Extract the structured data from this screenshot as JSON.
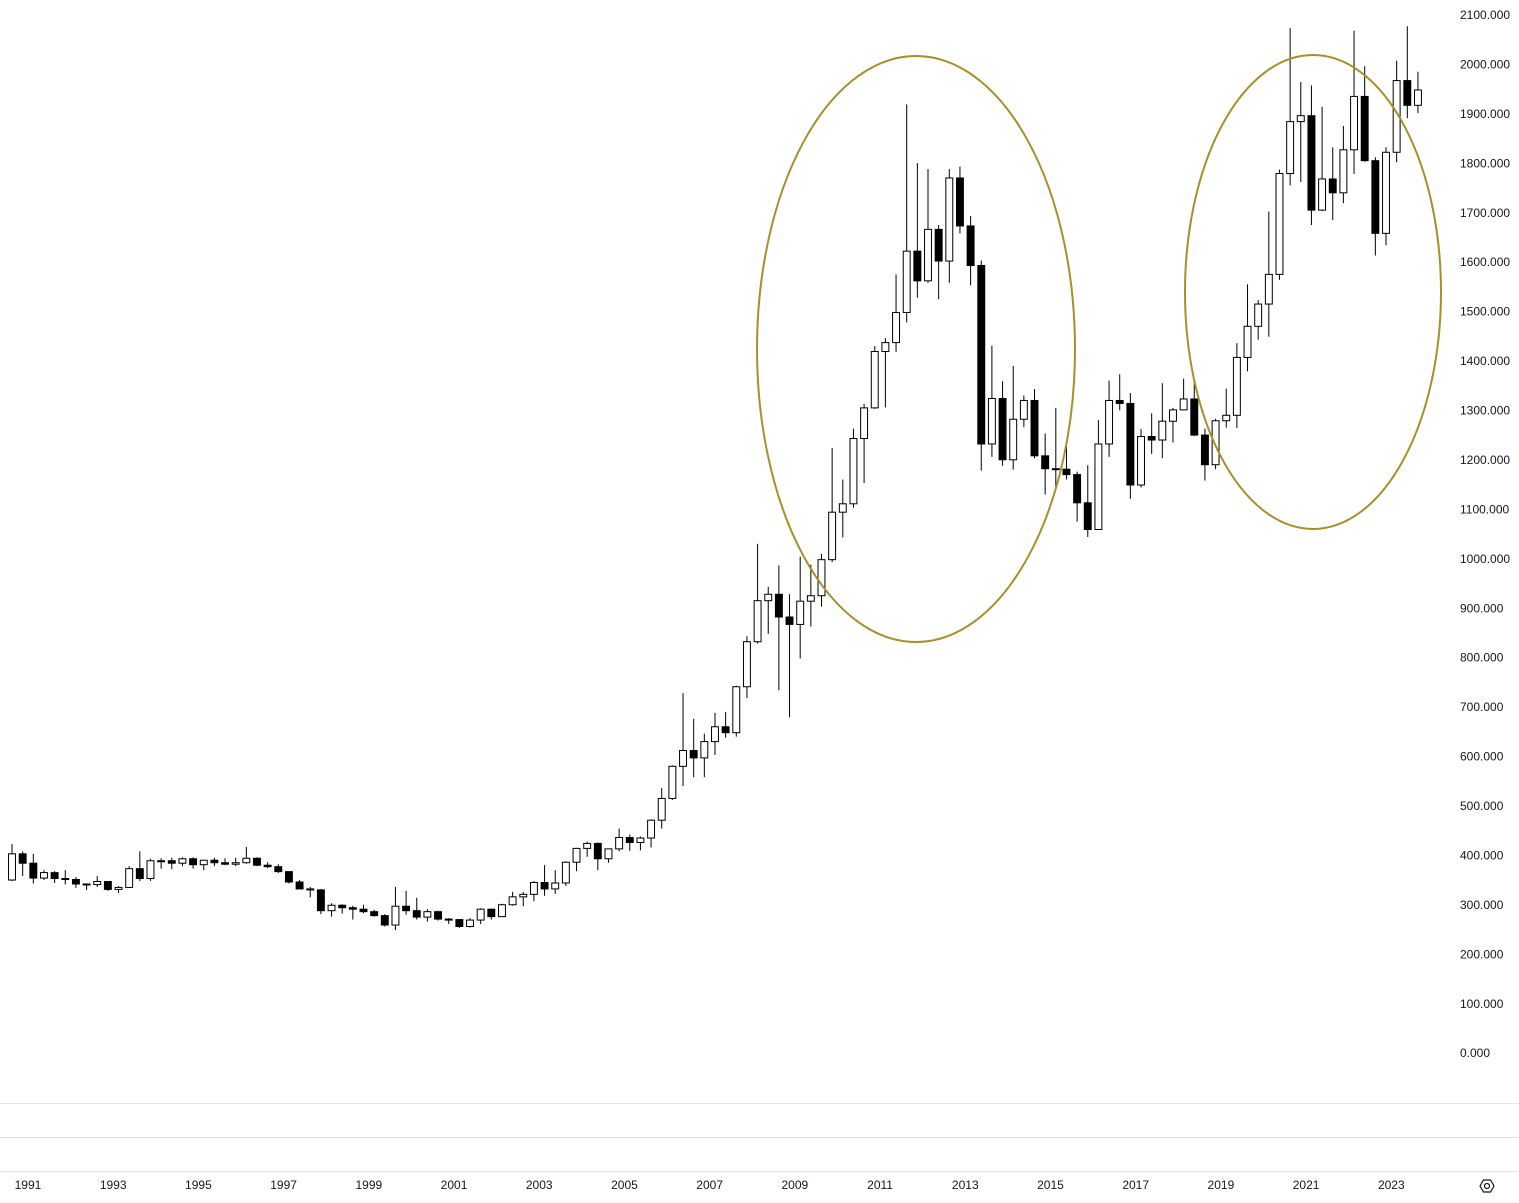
{
  "chart_data": {
    "type": "candlestick",
    "up_color": "#ffffff",
    "down_color": "#000000",
    "wick_color": "#000000",
    "grid": false,
    "xlim": [
      1990.343,
      2024.26
    ],
    "xticks": [
      1991,
      1993,
      1995,
      1997,
      1999,
      2001,
      2003,
      2005,
      2007,
      2009,
      2011,
      2013,
      2015,
      2017,
      2019,
      2021,
      2023
    ],
    "ylim": [
      -99,
      2132
    ],
    "yticks": [
      {
        "value": 0,
        "label": "0.000"
      },
      {
        "value": 100,
        "label": "100.000"
      },
      {
        "value": 200,
        "label": "200.000"
      },
      {
        "value": 300,
        "label": "300.000"
      },
      {
        "value": 400,
        "label": "400.000"
      },
      {
        "value": 500,
        "label": "500.000"
      },
      {
        "value": 600,
        "label": "600.000"
      },
      {
        "value": 700,
        "label": "700.000"
      },
      {
        "value": 800,
        "label": "800.000"
      },
      {
        "value": 900,
        "label": "900.000"
      },
      {
        "value": 1000,
        "label": "1000.000"
      },
      {
        "value": 1100,
        "label": "1100.000"
      },
      {
        "value": 1200,
        "label": "1200.000"
      },
      {
        "value": 1300,
        "label": "1300.000"
      },
      {
        "value": 1400,
        "label": "1400.000"
      },
      {
        "value": 1500,
        "label": "1500.000"
      },
      {
        "value": 1600,
        "label": "1600.000"
      },
      {
        "value": 1700,
        "label": "1700.000"
      },
      {
        "value": 1800,
        "label": "1800.000"
      },
      {
        "value": 1900,
        "label": "1900.000"
      },
      {
        "value": 2000,
        "label": "2000.000"
      },
      {
        "value": 2100,
        "label": "2100.000"
      }
    ],
    "x": [
      1990.625,
      1990.875,
      1991.125,
      1991.375,
      1991.625,
      1991.875,
      1992.125,
      1992.375,
      1992.625,
      1992.875,
      1993.125,
      1993.375,
      1993.625,
      1993.875,
      1994.125,
      1994.375,
      1994.625,
      1994.875,
      1995.125,
      1995.375,
      1995.625,
      1995.875,
      1996.125,
      1996.375,
      1996.625,
      1996.875,
      1997.125,
      1997.375,
      1997.625,
      1997.875,
      1998.125,
      1998.375,
      1998.625,
      1998.875,
      1999.125,
      1999.375,
      1999.625,
      1999.875,
      2000.125,
      2000.375,
      2000.625,
      2000.875,
      2001.125,
      2001.375,
      2001.625,
      2001.875,
      2002.125,
      2002.375,
      2002.625,
      2002.875,
      2003.125,
      2003.375,
      2003.625,
      2003.875,
      2004.125,
      2004.375,
      2004.625,
      2004.875,
      2005.125,
      2005.375,
      2005.625,
      2005.875,
      2006.125,
      2006.375,
      2006.625,
      2006.875,
      2007.125,
      2007.375,
      2007.625,
      2007.875,
      2008.125,
      2008.375,
      2008.625,
      2008.875,
      2009.125,
      2009.375,
      2009.625,
      2009.875,
      2010.125,
      2010.375,
      2010.625,
      2010.875,
      2011.125,
      2011.375,
      2011.625,
      2011.875,
      2012.125,
      2012.375,
      2012.625,
      2012.875,
      2013.125,
      2013.375,
      2013.625,
      2013.875,
      2014.125,
      2014.375,
      2014.625,
      2014.875,
      2015.125,
      2015.375,
      2015.625,
      2015.875,
      2016.125,
      2016.375,
      2016.625,
      2016.875,
      2017.125,
      2017.375,
      2017.625,
      2017.875,
      2018.125,
      2018.375,
      2018.625,
      2018.875,
      2019.125,
      2019.375,
      2019.625,
      2019.875,
      2020.125,
      2020.375,
      2020.625,
      2020.875,
      2021.125,
      2021.375,
      2021.625,
      2021.875,
      2022.125,
      2022.375,
      2022.625,
      2022.875,
      2023.125,
      2023.375,
      2023.625
    ],
    "candles": [
      [
        352,
        425,
        350,
        405
      ],
      [
        405,
        410,
        360,
        386
      ],
      [
        386,
        405,
        345,
        356
      ],
      [
        356,
        372,
        352,
        367
      ],
      [
        367,
        370,
        346,
        355
      ],
      [
        355,
        372,
        343,
        353
      ],
      [
        353,
        358,
        336,
        344
      ],
      [
        344,
        345,
        332,
        343
      ],
      [
        343,
        360,
        338,
        349
      ],
      [
        349,
        350,
        330,
        333
      ],
      [
        333,
        340,
        326,
        337
      ],
      [
        337,
        380,
        336,
        375
      ],
      [
        375,
        410,
        350,
        355
      ],
      [
        355,
        395,
        350,
        391
      ],
      [
        391,
        396,
        375,
        391
      ],
      [
        391,
        397,
        374,
        386
      ],
      [
        386,
        398,
        380,
        395
      ],
      [
        395,
        398,
        375,
        383
      ],
      [
        383,
        393,
        372,
        392
      ],
      [
        392,
        397,
        380,
        387
      ],
      [
        387,
        396,
        382,
        384
      ],
      [
        384,
        397,
        380,
        387
      ],
      [
        387,
        419,
        385,
        396
      ],
      [
        396,
        398,
        380,
        382
      ],
      [
        382,
        388,
        376,
        379
      ],
      [
        379,
        384,
        366,
        369
      ],
      [
        369,
        369,
        345,
        348
      ],
      [
        348,
        352,
        334,
        334
      ],
      [
        334,
        338,
        317,
        332
      ],
      [
        332,
        334,
        283,
        290
      ],
      [
        290,
        305,
        278,
        301
      ],
      [
        301,
        303,
        284,
        296
      ],
      [
        296,
        300,
        272,
        293
      ],
      [
        293,
        302,
        285,
        288
      ],
      [
        288,
        292,
        278,
        280
      ],
      [
        280,
        283,
        258,
        261
      ],
      [
        261,
        338,
        251,
        299
      ],
      [
        299,
        330,
        282,
        290
      ],
      [
        290,
        316,
        272,
        277
      ],
      [
        277,
        293,
        268,
        288
      ],
      [
        288,
        290,
        270,
        273
      ],
      [
        273,
        275,
        263,
        272
      ],
      [
        272,
        273,
        255,
        258
      ],
      [
        258,
        275,
        256,
        271
      ],
      [
        271,
        295,
        263,
        293
      ],
      [
        293,
        294,
        272,
        278
      ],
      [
        278,
        304,
        277,
        302
      ],
      [
        302,
        328,
        300,
        318
      ],
      [
        318,
        328,
        299,
        323
      ],
      [
        323,
        350,
        309,
        347
      ],
      [
        347,
        382,
        320,
        334
      ],
      [
        334,
        372,
        324,
        346
      ],
      [
        346,
        390,
        340,
        388
      ],
      [
        388,
        417,
        370,
        416
      ],
      [
        416,
        430,
        399,
        426
      ],
      [
        426,
        428,
        372,
        395
      ],
      [
        395,
        415,
        387,
        415
      ],
      [
        415,
        456,
        410,
        438
      ],
      [
        438,
        444,
        411,
        428
      ],
      [
        428,
        440,
        412,
        437
      ],
      [
        437,
        475,
        418,
        473
      ],
      [
        473,
        538,
        456,
        517
      ],
      [
        517,
        584,
        514,
        582
      ],
      [
        582,
        730,
        542,
        614
      ],
      [
        614,
        678,
        560,
        599
      ],
      [
        599,
        648,
        560,
        632
      ],
      [
        632,
        690,
        605,
        662
      ],
      [
        662,
        692,
        640,
        650
      ],
      [
        650,
        745,
        642,
        743
      ],
      [
        743,
        845,
        720,
        834
      ],
      [
        834,
        1032,
        830,
        917
      ],
      [
        917,
        945,
        850,
        930
      ],
      [
        930,
        988,
        736,
        884
      ],
      [
        884,
        930,
        681,
        869
      ],
      [
        869,
        1006,
        800,
        916
      ],
      [
        916,
        990,
        865,
        927
      ],
      [
        927,
        1012,
        905,
        1000
      ],
      [
        1000,
        1226,
        995,
        1096
      ],
      [
        1096,
        1162,
        1045,
        1113
      ],
      [
        1113,
        1265,
        1105,
        1245
      ],
      [
        1245,
        1315,
        1155,
        1307
      ],
      [
        1307,
        1432,
        1305,
        1421
      ],
      [
        1421,
        1448,
        1308,
        1439
      ],
      [
        1439,
        1577,
        1420,
        1500
      ],
      [
        1500,
        1921,
        1480,
        1624
      ],
      [
        1624,
        1802,
        1530,
        1564
      ],
      [
        1564,
        1790,
        1560,
        1668
      ],
      [
        1668,
        1677,
        1527,
        1604
      ],
      [
        1604,
        1790,
        1560,
        1772
      ],
      [
        1772,
        1795,
        1660,
        1675
      ],
      [
        1675,
        1695,
        1555,
        1595
      ],
      [
        1595,
        1605,
        1180,
        1234
      ],
      [
        1234,
        1433,
        1208,
        1326
      ],
      [
        1326,
        1361,
        1190,
        1202
      ],
      [
        1202,
        1392,
        1182,
        1284
      ],
      [
        1284,
        1332,
        1268,
        1322
      ],
      [
        1322,
        1345,
        1205,
        1210
      ],
      [
        1210,
        1255,
        1132,
        1184
      ],
      [
        1184,
        1307,
        1142,
        1183
      ],
      [
        1183,
        1232,
        1162,
        1172
      ],
      [
        1172,
        1178,
        1077,
        1115
      ],
      [
        1115,
        1191,
        1046,
        1061
      ],
      [
        1061,
        1282,
        1061,
        1234
      ],
      [
        1234,
        1362,
        1208,
        1322
      ],
      [
        1322,
        1375,
        1302,
        1316
      ],
      [
        1316,
        1337,
        1123,
        1151
      ],
      [
        1151,
        1264,
        1146,
        1249
      ],
      [
        1249,
        1296,
        1214,
        1242
      ],
      [
        1242,
        1357,
        1205,
        1280
      ],
      [
        1280,
        1307,
        1237,
        1303
      ],
      [
        1303,
        1366,
        1302,
        1325
      ],
      [
        1325,
        1365,
        1250,
        1252
      ],
      [
        1252,
        1265,
        1160,
        1192
      ],
      [
        1192,
        1285,
        1183,
        1281
      ],
      [
        1281,
        1346,
        1267,
        1292
      ],
      [
        1292,
        1438,
        1266,
        1409
      ],
      [
        1409,
        1557,
        1381,
        1472
      ],
      [
        1472,
        1525,
        1445,
        1517
      ],
      [
        1517,
        1704,
        1451,
        1577
      ],
      [
        1577,
        1789,
        1566,
        1781
      ],
      [
        1781,
        2075,
        1757,
        1886
      ],
      [
        1886,
        1966,
        1764,
        1898
      ],
      [
        1898,
        1959,
        1677,
        1707
      ],
      [
        1707,
        1916,
        1705,
        1770
      ],
      [
        1770,
        1834,
        1687,
        1742
      ],
      [
        1742,
        1877,
        1721,
        1829
      ],
      [
        1829,
        2070,
        1780,
        1937
      ],
      [
        1937,
        1998,
        1805,
        1807
      ],
      [
        1807,
        1814,
        1615,
        1660
      ],
      [
        1660,
        1834,
        1636,
        1824
      ],
      [
        1824,
        2009,
        1804,
        1969
      ],
      [
        1969,
        2079,
        1893,
        1919
      ],
      [
        1919,
        1987,
        1903,
        1950
      ]
    ]
  }
}
